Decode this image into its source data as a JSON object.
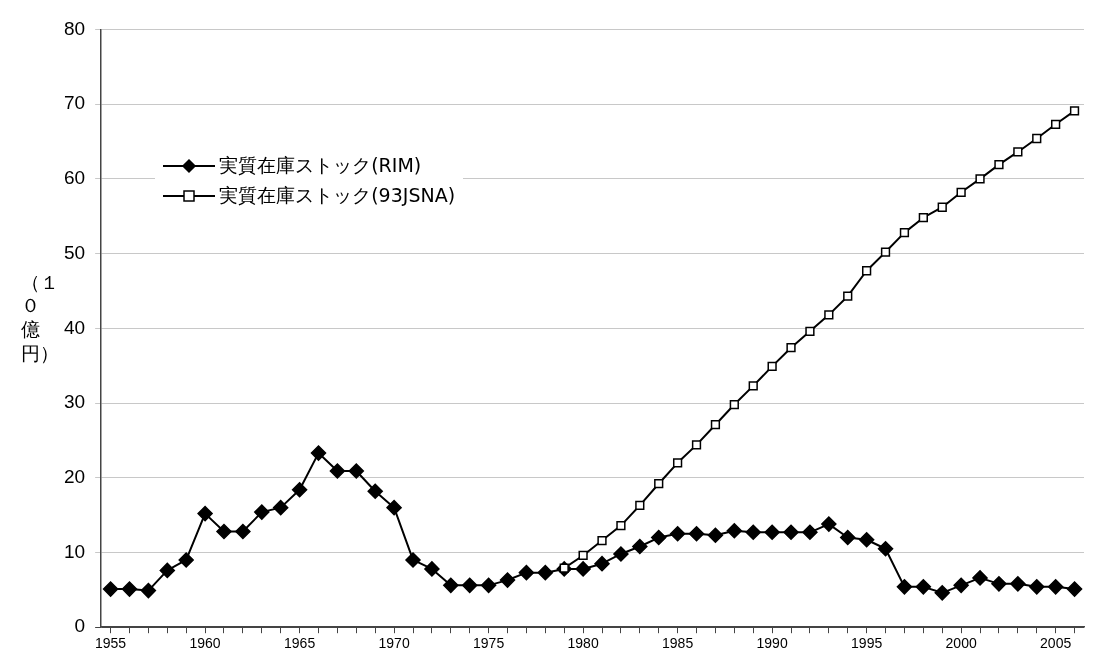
{
  "chart_data": {
    "type": "line",
    "ylabel": "（１０億円）",
    "x": [
      1955,
      1956,
      1957,
      1958,
      1959,
      1960,
      1961,
      1962,
      1963,
      1964,
      1965,
      1966,
      1967,
      1968,
      1969,
      1970,
      1971,
      1972,
      1973,
      1974,
      1975,
      1976,
      1977,
      1978,
      1979,
      1980,
      1981,
      1982,
      1983,
      1984,
      1985,
      1986,
      1987,
      1988,
      1989,
      1990,
      1991,
      1992,
      1993,
      1994,
      1995,
      1996,
      1997,
      1998,
      1999,
      2000,
      2001,
      2002,
      2003,
      2004,
      2005,
      2006
    ],
    "series": [
      {
        "name": "実質在庫ストック(RIM)",
        "color": "#000000",
        "marker": "diamond",
        "values": [
          5.1,
          5.1,
          4.9,
          7.6,
          9.0,
          15.2,
          12.8,
          12.8,
          15.4,
          16.0,
          18.4,
          23.3,
          20.9,
          20.9,
          18.2,
          16.0,
          9.0,
          7.8,
          5.6,
          5.6,
          5.6,
          6.3,
          7.3,
          7.3,
          7.8,
          7.8,
          8.5,
          9.8,
          10.8,
          12.0,
          12.5,
          12.5,
          12.3,
          12.9,
          12.7,
          12.7,
          12.7,
          12.7,
          13.8,
          12.0,
          11.7,
          10.5,
          5.4,
          5.4,
          4.6,
          5.6,
          6.6,
          5.8,
          5.8,
          5.4,
          5.4,
          5.1
        ]
      },
      {
        "name": "実質在庫ストック(93JSNA)",
        "color": "#000000",
        "marker": "square",
        "values": [
          null,
          null,
          null,
          null,
          null,
          null,
          null,
          null,
          null,
          null,
          null,
          null,
          null,
          null,
          null,
          null,
          null,
          null,
          null,
          null,
          null,
          null,
          null,
          null,
          7.9,
          9.6,
          11.6,
          13.6,
          16.3,
          19.2,
          22.0,
          24.4,
          27.1,
          29.8,
          32.3,
          34.9,
          37.4,
          39.6,
          41.8,
          44.3,
          47.7,
          50.2,
          52.8,
          54.8,
          56.2,
          58.2,
          60.0,
          61.9,
          63.6,
          65.4,
          67.3,
          69.1
        ]
      }
    ],
    "xlim": [
      1954.5,
      2006.5
    ],
    "xticks": [
      1955,
      {
        "value": 1956,
        "label": null
      },
      {
        "value": 1957,
        "label": null
      },
      {
        "value": 1958,
        "label": null
      },
      {
        "value": 1959,
        "label": null
      },
      1960,
      {
        "value": 1961,
        "label": null
      },
      {
        "value": 1962,
        "label": null
      },
      {
        "value": 1963,
        "label": null
      },
      {
        "value": 1964,
        "label": null
      },
      1965,
      {
        "value": 1966,
        "label": null
      },
      {
        "value": 1967,
        "label": null
      },
      {
        "value": 1968,
        "label": null
      },
      {
        "value": 1969,
        "label": null
      },
      1970,
      {
        "value": 1971,
        "label": null
      },
      {
        "value": 1972,
        "label": null
      },
      {
        "value": 1973,
        "label": null
      },
      {
        "value": 1974,
        "label": null
      },
      1975,
      {
        "value": 1976,
        "label": null
      },
      {
        "value": 1977,
        "label": null
      },
      {
        "value": 1978,
        "label": null
      },
      {
        "value": 1979,
        "label": null
      },
      1980,
      {
        "value": 1981,
        "label": null
      },
      {
        "value": 1982,
        "label": null
      },
      {
        "value": 1983,
        "label": null
      },
      {
        "value": 1984,
        "label": null
      },
      1985,
      {
        "value": 1986,
        "label": null
      },
      {
        "value": 1987,
        "label": null
      },
      {
        "value": 1988,
        "label": null
      },
      {
        "value": 1989,
        "label": null
      },
      1990,
      {
        "value": 1991,
        "label": null
      },
      {
        "value": 1992,
        "label": null
      },
      {
        "value": 1993,
        "label": null
      },
      {
        "value": 1994,
        "label": null
      },
      1995,
      {
        "value": 1996,
        "label": null
      },
      {
        "value": 1997,
        "label": null
      },
      {
        "value": 1998,
        "label": null
      },
      {
        "value": 1999,
        "label": null
      },
      2000,
      {
        "value": 2001,
        "label": null
      },
      {
        "value": 2002,
        "label": null
      },
      {
        "value": 2003,
        "label": null
      },
      {
        "value": 2004,
        "label": null
      },
      2005,
      {
        "value": 2006,
        "label": null
      }
    ],
    "ylim": [
      0,
      80
    ],
    "yticks": [
      0,
      10,
      20,
      30,
      40,
      50,
      60,
      70,
      80
    ],
    "grid": "y",
    "legend": "top left",
    "line_style": "solid"
  }
}
